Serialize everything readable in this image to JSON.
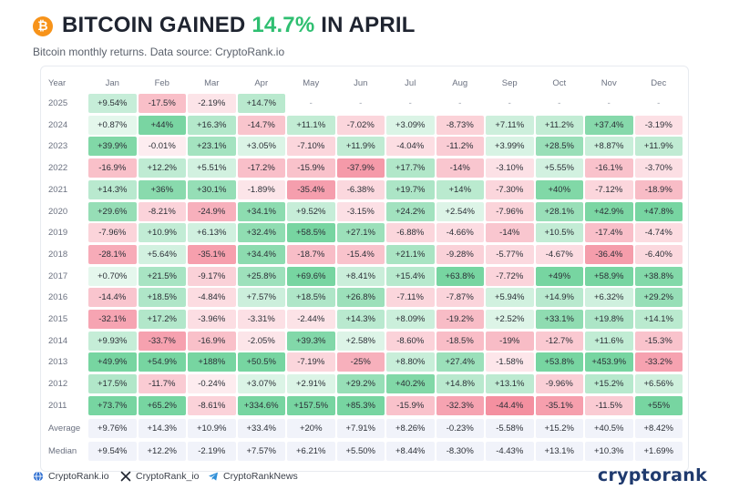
{
  "header": {
    "btc_symbol": "₿",
    "title_prefix": "BITCOIN GAINED ",
    "title_highlight": "14.7%",
    "title_suffix": " IN APRIL",
    "subtitle": "Bitcoin monthly returns. Data source: CryptoRank.io"
  },
  "colors": {
    "positive": "#2fbf71",
    "negative": "#f0607a",
    "stat_bg": "#f1f3fa",
    "brand": "#1f3a6e",
    "btc": "#f7931a"
  },
  "chart_data": {
    "type": "heatmap",
    "title": "BITCOIN GAINED 14.7% IN APRIL",
    "subtitle": "Bitcoin monthly returns. Data source: CryptoRank.io",
    "row_header": "Year",
    "columns": [
      "Jan",
      "Feb",
      "Mar",
      "Apr",
      "May",
      "Jun",
      "Jul",
      "Aug",
      "Sep",
      "Oct",
      "Nov",
      "Dec"
    ],
    "rows": [
      {
        "year": "2025",
        "values": [
          "+9.54%",
          "-17.5%",
          "-2.19%",
          "+14.7%",
          "-",
          "-",
          "-",
          "-",
          "-",
          "-",
          "-",
          "-"
        ]
      },
      {
        "year": "2024",
        "values": [
          "+0.87%",
          "+44%",
          "+16.3%",
          "-14.7%",
          "+11.1%",
          "-7.02%",
          "+3.09%",
          "-8.73%",
          "+7.11%",
          "+11.2%",
          "+37.4%",
          "-3.19%"
        ]
      },
      {
        "year": "2023",
        "values": [
          "+39.9%",
          "-0.01%",
          "+23.1%",
          "+3.05%",
          "-7.10%",
          "+11.9%",
          "-4.04%",
          "-11.2%",
          "+3.99%",
          "+28.5%",
          "+8.87%",
          "+11.9%"
        ]
      },
      {
        "year": "2022",
        "values": [
          "-16.9%",
          "+12.2%",
          "+5.51%",
          "-17.2%",
          "-15.9%",
          "-37.9%",
          "+17.7%",
          "-14%",
          "-3.10%",
          "+5.55%",
          "-16.1%",
          "-3.70%"
        ]
      },
      {
        "year": "2021",
        "values": [
          "+14.3%",
          "+36%",
          "+30.1%",
          "-1.89%",
          "-35.4%",
          "-6.38%",
          "+19.7%",
          "+14%",
          "-7.30%",
          "+40%",
          "-7.12%",
          "-18.9%"
        ]
      },
      {
        "year": "2020",
        "values": [
          "+29.6%",
          "-8.21%",
          "-24.9%",
          "+34.1%",
          "+9.52%",
          "-3.15%",
          "+24.2%",
          "+2.54%",
          "-7.96%",
          "+28.1%",
          "+42.9%",
          "+47.8%"
        ]
      },
      {
        "year": "2019",
        "values": [
          "-7.96%",
          "+10.9%",
          "+6.13%",
          "+32.4%",
          "+58.5%",
          "+27.1%",
          "-6.88%",
          "-4.66%",
          "-14%",
          "+10.5%",
          "-17.4%",
          "-4.74%"
        ]
      },
      {
        "year": "2018",
        "values": [
          "-28.1%",
          "+5.64%",
          "-35.1%",
          "+34.4%",
          "-18.7%",
          "-15.4%",
          "+21.1%",
          "-9.28%",
          "-5.77%",
          "-4.67%",
          "-36.4%",
          "-6.40%"
        ]
      },
      {
        "year": "2017",
        "values": [
          "+0.70%",
          "+21.5%",
          "-9.17%",
          "+25.8%",
          "+69.6%",
          "+8.41%",
          "+15.4%",
          "+63.8%",
          "-7.72%",
          "+49%",
          "+58.9%",
          "+38.8%"
        ]
      },
      {
        "year": "2016",
        "values": [
          "-14.4%",
          "+18.5%",
          "-4.84%",
          "+7.57%",
          "+18.5%",
          "+26.8%",
          "-7.11%",
          "-7.87%",
          "+5.94%",
          "+14.9%",
          "+6.32%",
          "+29.2%"
        ]
      },
      {
        "year": "2015",
        "values": [
          "-32.1%",
          "+17.2%",
          "-3.96%",
          "-3.31%",
          "-2.44%",
          "+14.3%",
          "+8.09%",
          "-19.2%",
          "+2.52%",
          "+33.1%",
          "+19.8%",
          "+14.1%"
        ]
      },
      {
        "year": "2014",
        "values": [
          "+9.93%",
          "-33.7%",
          "-16.9%",
          "-2.05%",
          "+39.3%",
          "+2.58%",
          "-8.60%",
          "-18.5%",
          "-19%",
          "-12.7%",
          "+11.6%",
          "-15.3%"
        ]
      },
      {
        "year": "2013",
        "values": [
          "+49.9%",
          "+54.9%",
          "+188%",
          "+50.5%",
          "-7.19%",
          "-25%",
          "+8.80%",
          "+27.4%",
          "-1.58%",
          "+53.8%",
          "+453.9%",
          "-33.2%"
        ]
      },
      {
        "year": "2012",
        "values": [
          "+17.5%",
          "-11.7%",
          "-0.24%",
          "+3.07%",
          "+2.91%",
          "+29.2%",
          "+40.2%",
          "+14.8%",
          "+13.1%",
          "-9.96%",
          "+15.2%",
          "+6.56%"
        ]
      },
      {
        "year": "2011",
        "values": [
          "+73.7%",
          "+65.2%",
          "-8.61%",
          "+334.6%",
          "+157.5%",
          "+85.3%",
          "-15.9%",
          "-32.3%",
          "-44.4%",
          "-35.1%",
          "-11.5%",
          "+55%"
        ]
      }
    ],
    "stats": [
      {
        "label": "Average",
        "values": [
          "+9.76%",
          "+14.3%",
          "+10.9%",
          "+33.4%",
          "+20%",
          "+7.91%",
          "+8.26%",
          "-0.23%",
          "-5.58%",
          "+15.2%",
          "+40.5%",
          "+8.42%"
        ]
      },
      {
        "label": "Median",
        "values": [
          "+9.54%",
          "+12.2%",
          "-2.19%",
          "+7.57%",
          "+6.21%",
          "+5.50%",
          "+8.44%",
          "-8.30%",
          "-4.43%",
          "+13.1%",
          "+10.3%",
          "+1.69%"
        ]
      }
    ]
  },
  "footer": {
    "website": "CryptoRank.io",
    "x_handle": "CryptoRank_io",
    "telegram": "CryptoRankNews",
    "brand": "cryptorank"
  }
}
